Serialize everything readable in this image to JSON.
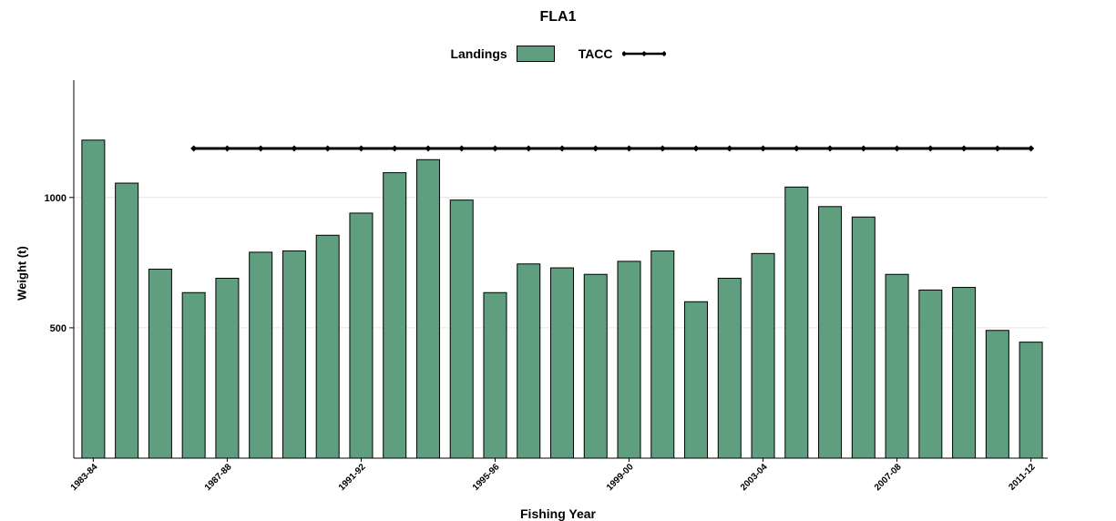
{
  "chart_data": {
    "type": "bar",
    "title": "FLA1",
    "xlabel": "Fishing Year",
    "ylabel": "Weight (t)",
    "ylim": [
      0,
      1450
    ],
    "yticks": [
      500,
      1000
    ],
    "grid": true,
    "legend_position": "top-center",
    "categories": [
      "1983-84",
      "1984-85",
      "1985-86",
      "1986-87",
      "1987-88",
      "1988-89",
      "1989-90",
      "1990-91",
      "1991-92",
      "1992-93",
      "1993-94",
      "1994-95",
      "1995-96",
      "1996-97",
      "1997-98",
      "1998-99",
      "1999-00",
      "2000-01",
      "2001-02",
      "2002-03",
      "2003-04",
      "2004-05",
      "2005-06",
      "2006-07",
      "2007-08",
      "2008-09",
      "2009-10",
      "2010-11",
      "2011-12"
    ],
    "xtick_labels": [
      "1983-84",
      "1987-88",
      "1991-92",
      "1995-96",
      "1999-00",
      "2003-04",
      "2007-08",
      "2011-12"
    ],
    "series": [
      {
        "name": "Landings",
        "kind": "bar",
        "color": "#5f9e7f",
        "values": [
          1220,
          1055,
          725,
          635,
          690,
          790,
          795,
          855,
          940,
          1095,
          1145,
          990,
          635,
          745,
          730,
          705,
          755,
          795,
          600,
          690,
          785,
          1040,
          965,
          925,
          705,
          645,
          655,
          490,
          445
        ]
      },
      {
        "name": "TACC",
        "kind": "line",
        "color": "#000000",
        "values": [
          null,
          null,
          null,
          1188,
          1188,
          1188,
          1188,
          1188,
          1188,
          1188,
          1188,
          1188,
          1188,
          1188,
          1188,
          1188,
          1188,
          1188,
          1188,
          1188,
          1188,
          1188,
          1188,
          1188,
          1188,
          1188,
          1188,
          1188,
          1188
        ]
      }
    ]
  }
}
